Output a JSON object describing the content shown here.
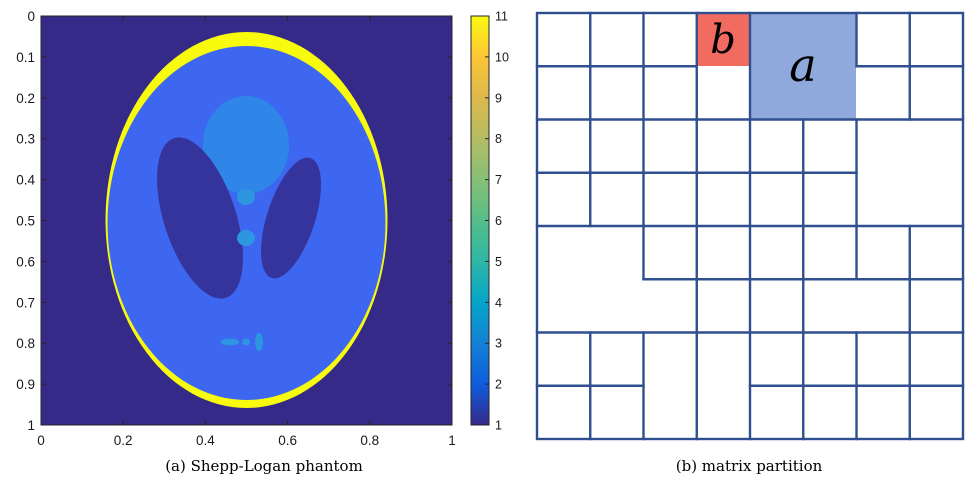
{
  "panel_a": {
    "caption": "(a) Shepp-Logan phantom",
    "x_ticks": [
      "0",
      "0.2",
      "0.4",
      "0.6",
      "0.8",
      "1"
    ],
    "y_ticks": [
      "0",
      "0.1",
      "0.2",
      "0.3",
      "0.4",
      "0.5",
      "0.6",
      "0.7",
      "0.8",
      "0.9",
      "1"
    ],
    "colorbar_ticks": [
      "11",
      "10",
      "9",
      "8",
      "7",
      "6",
      "5",
      "4",
      "3",
      "2",
      "1"
    ],
    "colorbar_range": [
      1,
      11
    ],
    "colormap": "parula",
    "colors": {
      "background": "#352a87",
      "skull": "#f9fb0e",
      "brain": "#3d67f0",
      "ventricles": "#35349c",
      "center_region": "#2f86e8",
      "small_features": "#2e96e0"
    }
  },
  "panel_b": {
    "caption": "(b) matrix partition",
    "block_labels": {
      "a": "a",
      "b": "b"
    },
    "colors": {
      "grid_line": "#2f4f8f",
      "block_a": "#8fa9dc",
      "block_b": "#f26b61"
    }
  }
}
